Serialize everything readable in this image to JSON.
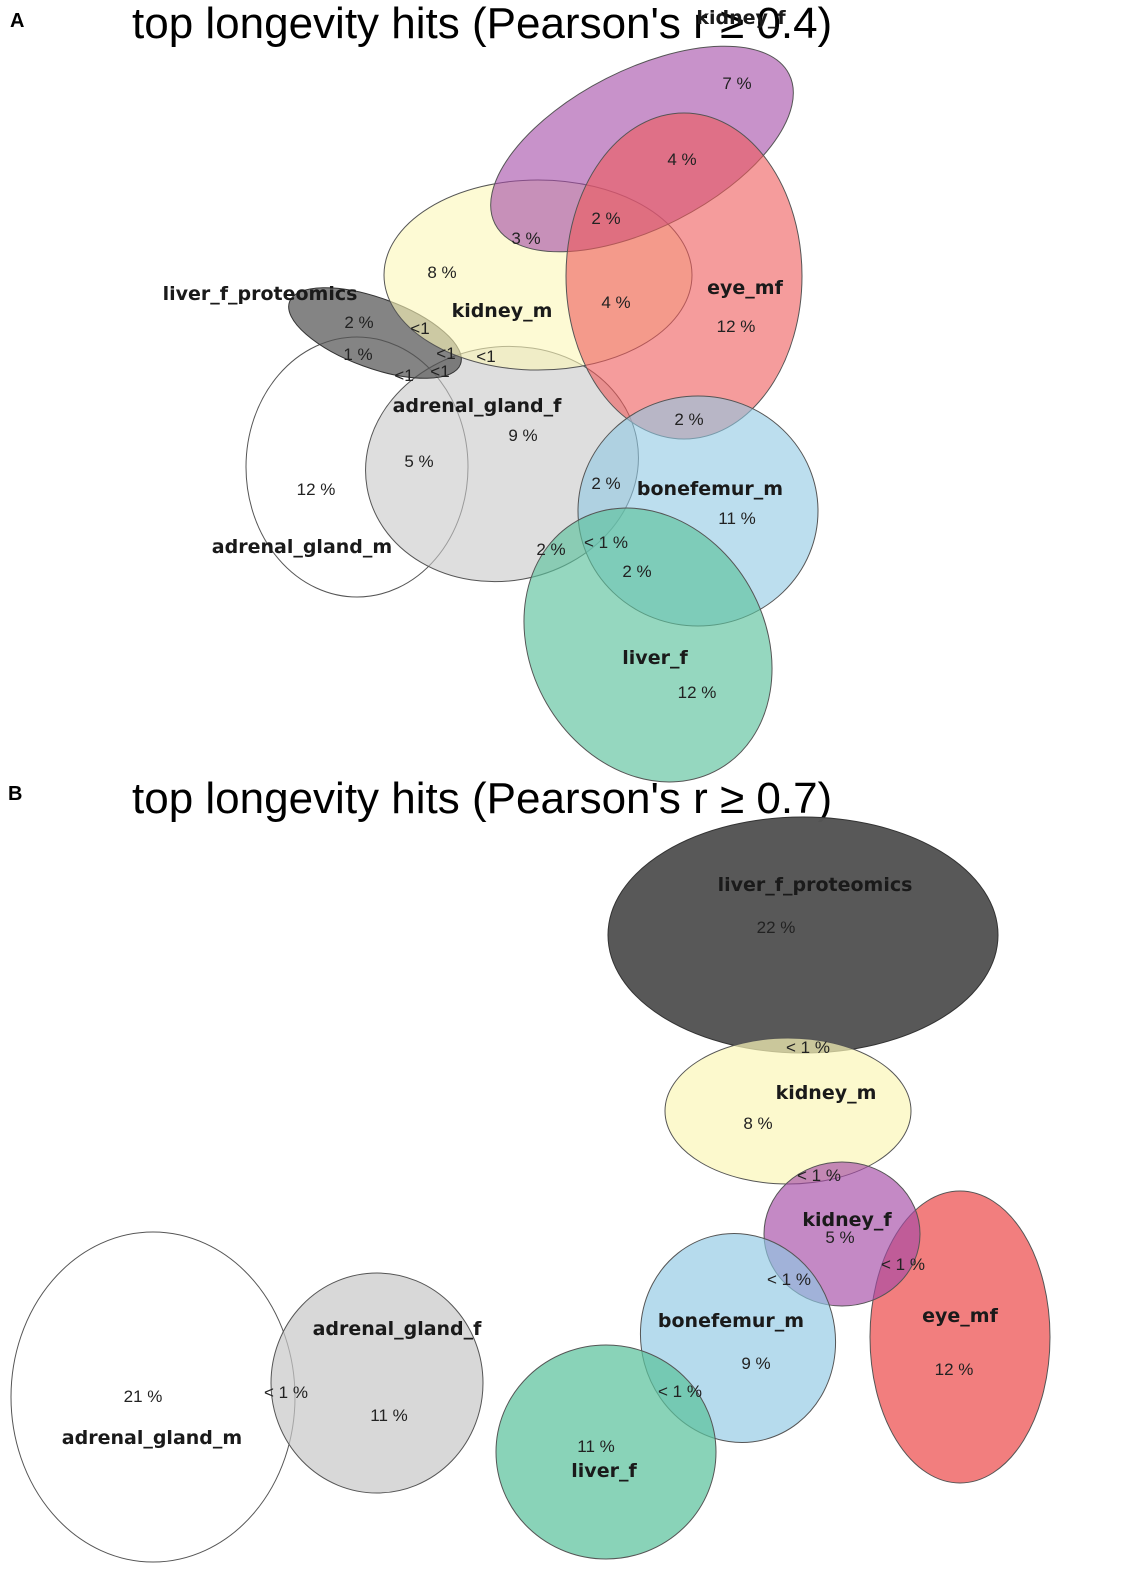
{
  "panels": [
    {
      "letter": "A",
      "title": "top longevity hits (Pearson's r ≥ 0.4)",
      "sets": [
        {
          "id": "adrenal_gland_m",
          "label": "adrenal_gland_m",
          "color": "#ffffff"
        },
        {
          "id": "adrenal_gland_f",
          "label": "adrenal_gland_f",
          "color": "#c8c8c8"
        },
        {
          "id": "liver_f_proteomics",
          "label": "liver_f_proteomics",
          "color": "#555555"
        },
        {
          "id": "kidney_m",
          "label": "kidney_m",
          "color": "#fbf6b8"
        },
        {
          "id": "kidney_f",
          "label": "kidney_f",
          "color": "#a44aa6"
        },
        {
          "id": "eye_mf",
          "label": "eye_mf",
          "color": "#ee5a5a"
        },
        {
          "id": "bonefemur_m",
          "label": "bonefemur_m",
          "color": "#8fc8e3"
        },
        {
          "id": "liver_f",
          "label": "liver_f",
          "color": "#5cc29d"
        }
      ],
      "regions": [
        "7 %",
        "4 %",
        "2 %",
        "3 %",
        "8 %",
        "4 %",
        "12 %",
        "2 %",
        "<1",
        "1 %",
        "<1",
        "<1",
        "<1",
        "<1",
        "9 %",
        "2 %",
        "5 %",
        "12 %",
        "2 %",
        "11 %",
        "2 %",
        "< 1 %",
        "2 %",
        "12 %"
      ]
    },
    {
      "letter": "B",
      "title": "top longevity hits (Pearson's r ≥ 0.7)",
      "sets": [
        {
          "id": "liver_f_proteomics",
          "label": "liver_f_proteomics",
          "color": "#555555"
        },
        {
          "id": "kidney_m",
          "label": "kidney_m",
          "color": "#fbf6b8"
        },
        {
          "id": "kidney_f",
          "label": "kidney_f",
          "color": "#a44aa6"
        },
        {
          "id": "eye_mf",
          "label": "eye_mf",
          "color": "#ee5a5a"
        },
        {
          "id": "bonefemur_m",
          "label": "bonefemur_m",
          "color": "#8fc8e3"
        },
        {
          "id": "liver_f",
          "label": "liver_f",
          "color": "#5cc29d"
        },
        {
          "id": "adrenal_gland_f",
          "label": "adrenal_gland_f",
          "color": "#c8c8c8"
        },
        {
          "id": "adrenal_gland_m",
          "label": "adrenal_gland_m",
          "color": "#ffffff"
        }
      ],
      "regions": [
        "22 %",
        "< 1 %",
        "8 %",
        "< 1 %",
        "5 %",
        "< 1 %",
        "< 1 %",
        "12 %",
        "9 %",
        "< 1 %",
        "11 %",
        "21 %",
        "< 1 %",
        "11 %"
      ]
    }
  ]
}
